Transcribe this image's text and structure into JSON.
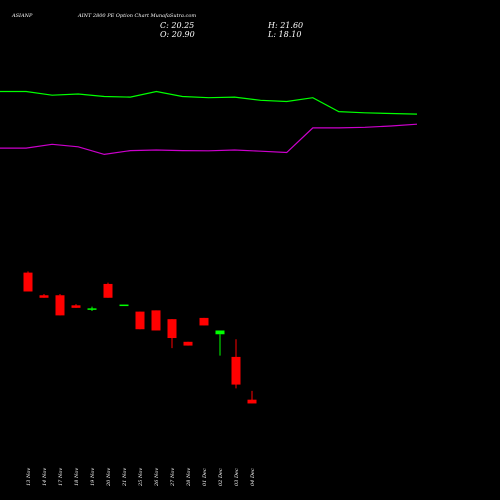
{
  "header": {
    "symbol": "ASIANP",
    "title": "AINT 2800  PE Option  Chart MunafaSutra.com",
    "close_label": "C: 20.25",
    "high_label": "H: 21.60",
    "open_label": "O: 20.90",
    "low_label": "L: 18.10"
  },
  "chart_data": {
    "type": "candlestick",
    "categories": [
      "13 Nov",
      "14 Nov",
      "17 Nov",
      "18 Nov",
      "19 Nov",
      "20 Nov",
      "21 Nov",
      "25 Nov",
      "26 Nov",
      "27 Nov",
      "28 Nov",
      "01 Dec",
      "02 Dec",
      "03 Dec",
      "04 Dec"
    ],
    "candles": [
      {
        "open": 71,
        "high": 72,
        "low": 56,
        "close": 56
      },
      {
        "open": 53,
        "high": 54,
        "low": 51,
        "close": 51
      },
      {
        "open": 53,
        "high": 54,
        "low": 37,
        "close": 37
      },
      {
        "open": 45,
        "high": 46,
        "low": 43,
        "close": 43
      },
      {
        "open": 42,
        "high": 44,
        "low": 40.5,
        "close": 42
      },
      {
        "open": 62,
        "high": 63,
        "low": 51,
        "close": 51
      },
      {
        "open": 45,
        "high": 45.5,
        "low": 44.5,
        "close": 45
      },
      {
        "open": 40,
        "high": 40,
        "low": 26,
        "close": 26
      },
      {
        "open": 41,
        "high": 41,
        "low": 25,
        "close": 25
      },
      {
        "open": 34,
        "high": 34,
        "low": 11,
        "close": 19
      },
      {
        "open": 16,
        "high": 16,
        "low": 13,
        "close": 13
      },
      {
        "open": 35,
        "high": 35,
        "low": 29,
        "close": 29
      },
      {
        "open": 22,
        "high": 22,
        "low": 5,
        "close": 25
      },
      {
        "open": 4,
        "high": 18,
        "low": -21,
        "close": -18
      },
      {
        "open": -30,
        "high": -23,
        "low": -33,
        "close": -33
      }
    ],
    "up_color": "#00ff00",
    "down_color": "#ff0000",
    "series": [
      {
        "color": "#00ff00",
        "points": [
          [
            0,
            215
          ],
          [
            1,
            215
          ],
          [
            2,
            212
          ],
          [
            3,
            213
          ],
          [
            4,
            211
          ],
          [
            5,
            210.5
          ],
          [
            6,
            215
          ],
          [
            7,
            211
          ],
          [
            8,
            210
          ],
          [
            9,
            210.5
          ],
          [
            10,
            208
          ],
          [
            11,
            207
          ],
          [
            12,
            210
          ],
          [
            13,
            199
          ],
          [
            14,
            198
          ],
          [
            15,
            197.5
          ],
          [
            16,
            197
          ]
        ]
      },
      {
        "color": "#cc00cc",
        "points": [
          [
            0,
            170
          ],
          [
            1,
            170
          ],
          [
            2,
            173
          ],
          [
            3,
            171
          ],
          [
            4,
            165
          ],
          [
            5,
            168
          ],
          [
            6,
            168.5
          ],
          [
            7,
            168
          ],
          [
            8,
            167.8
          ],
          [
            9,
            168.5
          ],
          [
            10,
            167.5
          ],
          [
            11,
            166.5
          ],
          [
            12,
            186
          ],
          [
            13,
            186
          ],
          [
            14,
            186.5
          ],
          [
            15,
            187.5
          ],
          [
            16,
            189
          ]
        ]
      }
    ],
    "ylim": [
      -70,
      240
    ],
    "xlim": [
      0,
      16
    ]
  }
}
